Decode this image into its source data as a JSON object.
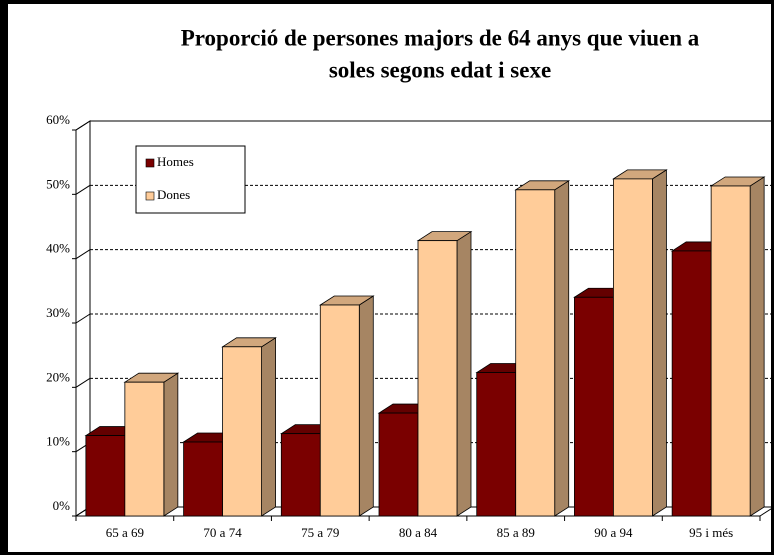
{
  "chart_data": {
    "type": "bar3d",
    "title": [
      "Proporció de persones majors de 64 anys que viuen a",
      "soles segons edat i sexe"
    ],
    "categories": [
      "65 a 69",
      "70 a 74",
      "75 a 79",
      "80 a 84",
      "85 a 89",
      "90 a 94",
      "95 i més"
    ],
    "series": [
      {
        "name": "Homes",
        "color": "#7a0000",
        "values": [
          12.5,
          11.5,
          12.8,
          16.0,
          22.3,
          34.0,
          41.2
        ]
      },
      {
        "name": "Dones",
        "color": "#ffcc99",
        "values": [
          20.8,
          26.3,
          32.8,
          42.8,
          50.7,
          52.4,
          51.3
        ]
      }
    ],
    "ylim": [
      0,
      60
    ],
    "yticks": [
      {
        "value": 0,
        "label": "0%"
      },
      {
        "value": 10,
        "label": "10%"
      },
      {
        "value": 20,
        "label": "20%"
      },
      {
        "value": 30,
        "label": "30%"
      },
      {
        "value": 40,
        "label": "40%"
      },
      {
        "value": 50,
        "label": "50%"
      },
      {
        "value": 60,
        "label": "60%"
      }
    ],
    "grid": true,
    "legend": "upper left"
  }
}
